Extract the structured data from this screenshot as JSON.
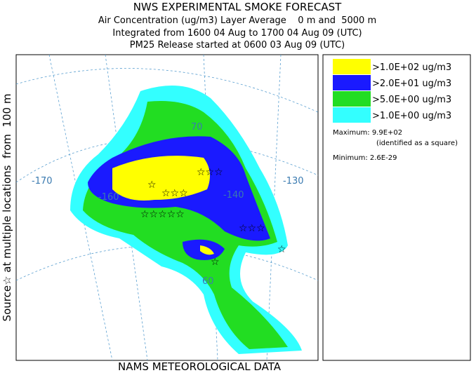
{
  "header": {
    "title": "NWS EXPERIMENTAL SMOKE FORECAST",
    "lines": [
      "Air Concentration (ug/m3) Layer Average    0 m and  5000 m",
      "Integrated from 1600 04 Aug to 1700 04 Aug 09 (UTC)",
      "PM25 Release started at 0600 03 Aug 09 (UTC)"
    ]
  },
  "side_label": "Source☆ at multiple locations  from  100 m",
  "footer": "NAMS METEOROLOGICAL DATA",
  "map": {
    "labels": [
      "-170",
      "-160",
      "-140",
      "-130",
      "70",
      "60"
    ]
  },
  "legend": {
    "items": [
      {
        "label": ">1.0E+02 ug/m3",
        "color": "#ffff00"
      },
      {
        "label": ">2.0E+01 ug/m3",
        "color": "#1a1aff"
      },
      {
        "label": ">5.0E+00 ug/m3",
        "color": "#22dd22"
      },
      {
        "label": ">1.0E+00 ug/m3",
        "color": "#33ffff"
      }
    ],
    "maximum": "Maximum: 9.9E+02",
    "maximum_note": "(identified as a square)",
    "minimum": "Minimum: 2.6E-29"
  }
}
